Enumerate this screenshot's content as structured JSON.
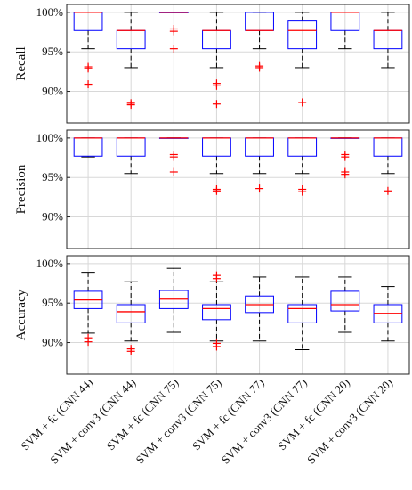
{
  "chart_data": [
    {
      "type": "box",
      "ylabel": "Recall",
      "ylim": [
        86,
        101
      ],
      "yticks": [
        90,
        95,
        100
      ],
      "ytick_labels": [
        "90%",
        "95%",
        "100%"
      ],
      "grid": true,
      "boxes": [
        {
          "q1": 97.7,
          "median": 100,
          "q3": 100,
          "wlo": 95.4,
          "whi": 100,
          "outliers": [
            93.1,
            92.9,
            90.9
          ]
        },
        {
          "q1": 95.4,
          "median": 97.7,
          "q3": 97.7,
          "wlo": 93.0,
          "whi": 100,
          "outliers": [
            88.5,
            88.3
          ]
        },
        {
          "q1": 100,
          "median": 100,
          "q3": 100,
          "wlo": 100,
          "whi": 100,
          "outliers": [
            97.9,
            97.6,
            95.4
          ]
        },
        {
          "q1": 95.4,
          "median": 97.7,
          "q3": 97.7,
          "wlo": 93.0,
          "whi": 100,
          "outliers": [
            91.0,
            90.7,
            88.4
          ]
        },
        {
          "q1": 97.7,
          "median": 97.7,
          "q3": 100,
          "wlo": 95.4,
          "whi": 100,
          "outliers": [
            93.2,
            93.0
          ]
        },
        {
          "q1": 95.4,
          "median": 97.7,
          "q3": 98.9,
          "wlo": 93.0,
          "whi": 100,
          "outliers": [
            88.6
          ]
        },
        {
          "q1": 97.7,
          "median": 100,
          "q3": 100,
          "wlo": 95.4,
          "whi": 100,
          "outliers": []
        },
        {
          "q1": 95.4,
          "median": 97.7,
          "q3": 97.7,
          "wlo": 93.0,
          "whi": 100,
          "outliers": []
        }
      ]
    },
    {
      "type": "box",
      "ylabel": "Precision",
      "ylim": [
        86,
        101
      ],
      "yticks": [
        90,
        95,
        100
      ],
      "ytick_labels": [
        "90%",
        "95%",
        "100%"
      ],
      "grid": true,
      "boxes": [
        {
          "q1": 97.7,
          "median": 100,
          "q3": 100,
          "wlo": 97.6,
          "whi": 100,
          "outliers": []
        },
        {
          "q1": 97.7,
          "median": 100,
          "q3": 100,
          "wlo": 95.5,
          "whi": 100,
          "outliers": []
        },
        {
          "q1": 100,
          "median": 100,
          "q3": 100,
          "wlo": 100,
          "whi": 100,
          "outliers": [
            97.9,
            97.6,
            95.7
          ]
        },
        {
          "q1": 97.7,
          "median": 100,
          "q3": 100,
          "wlo": 95.5,
          "whi": 100,
          "outliers": [
            93.5,
            93.3
          ]
        },
        {
          "q1": 97.7,
          "median": 100,
          "q3": 100,
          "wlo": 95.5,
          "whi": 100,
          "outliers": [
            93.6
          ]
        },
        {
          "q1": 97.7,
          "median": 100,
          "q3": 100,
          "wlo": 95.5,
          "whi": 100,
          "outliers": [
            93.5,
            93.2
          ]
        },
        {
          "q1": 100,
          "median": 100,
          "q3": 100,
          "wlo": 100,
          "whi": 100,
          "outliers": [
            97.9,
            97.6,
            95.7,
            95.4
          ]
        },
        {
          "q1": 97.7,
          "median": 100,
          "q3": 100,
          "wlo": 95.5,
          "whi": 100,
          "outliers": [
            93.3
          ]
        }
      ]
    },
    {
      "type": "box",
      "ylabel": "Accuracy",
      "ylim": [
        86,
        101
      ],
      "yticks": [
        90,
        95,
        100
      ],
      "ytick_labels": [
        "90%",
        "95%",
        "100%"
      ],
      "grid": true,
      "boxes": [
        {
          "q1": 94.3,
          "median": 95.4,
          "q3": 96.5,
          "wlo": 91.2,
          "whi": 98.9,
          "outliers": [
            90.6,
            90.1
          ]
        },
        {
          "q1": 92.5,
          "median": 93.9,
          "q3": 94.8,
          "wlo": 90.2,
          "whi": 97.7,
          "outliers": [
            89.2,
            88.9
          ]
        },
        {
          "q1": 94.3,
          "median": 95.5,
          "q3": 96.6,
          "wlo": 91.3,
          "whi": 99.4,
          "outliers": []
        },
        {
          "q1": 92.9,
          "median": 94.3,
          "q3": 94.8,
          "wlo": 90.2,
          "whi": 97.7,
          "outliers": [
            98.5,
            98.1,
            89.9,
            89.5
          ]
        },
        {
          "q1": 93.8,
          "median": 94.8,
          "q3": 95.9,
          "wlo": 90.2,
          "whi": 98.3,
          "outliers": []
        },
        {
          "q1": 92.5,
          "median": 94.3,
          "q3": 94.8,
          "wlo": 89.1,
          "whi": 98.3,
          "outliers": []
        },
        {
          "q1": 94.0,
          "median": 94.8,
          "q3": 96.5,
          "wlo": 91.3,
          "whi": 98.3,
          "outliers": []
        },
        {
          "q1": 92.5,
          "median": 93.7,
          "q3": 94.8,
          "wlo": 90.2,
          "whi": 97.1,
          "outliers": []
        }
      ]
    }
  ],
  "categories": [
    "SVM + fc (CNN 44)",
    "SVM + conv3 (CNN 44)",
    "SVM + fc (CNN 75)",
    "SVM + conv3 (CNN 75)",
    "SVM + fc (CNN 77)",
    "SVM + conv3 (CNN 77)",
    "SVM + fc (CNN 20)",
    "SVM + conv3 (CNN 20)"
  ],
  "colors": {
    "box": "#0000ff",
    "median": "#ff0000",
    "outlier": "#ff0000",
    "whisker": "#000000",
    "grid": "#d8d8d8"
  }
}
